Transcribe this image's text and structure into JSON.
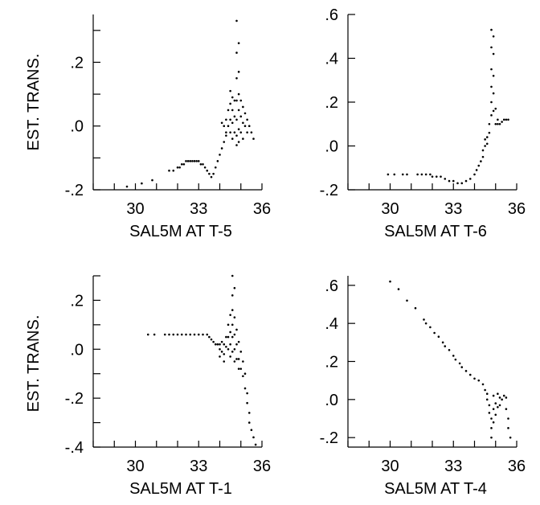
{
  "chart_data": [
    {
      "type": "scatter",
      "xlabel": "SAL5M AT T-5",
      "ylabel": "EST. TRANS.",
      "xlim": [
        28,
        36
      ],
      "ylim": [
        -0.2,
        0.35
      ],
      "xticks": [
        30,
        33,
        36
      ],
      "xtick_labels": [
        "30",
        "33",
        "36"
      ],
      "yticks": [
        -0.2,
        -0.1,
        0.0,
        0.1,
        0.2,
        0.3
      ],
      "ytick_labels": [
        "-.2",
        "",
        ".0",
        "",
        ".2",
        ""
      ],
      "points": [
        [
          29.6,
          -0.19
        ],
        [
          30.3,
          -0.18
        ],
        [
          30.8,
          -0.17
        ],
        [
          31.6,
          -0.14
        ],
        [
          31.8,
          -0.14
        ],
        [
          32.0,
          -0.13
        ],
        [
          32.1,
          -0.13
        ],
        [
          32.2,
          -0.12
        ],
        [
          32.3,
          -0.12
        ],
        [
          32.4,
          -0.11
        ],
        [
          32.5,
          -0.11
        ],
        [
          32.6,
          -0.11
        ],
        [
          32.7,
          -0.11
        ],
        [
          32.8,
          -0.11
        ],
        [
          32.9,
          -0.11
        ],
        [
          33.0,
          -0.11
        ],
        [
          33.1,
          -0.12
        ],
        [
          33.2,
          -0.12
        ],
        [
          33.3,
          -0.13
        ],
        [
          33.4,
          -0.14
        ],
        [
          33.5,
          -0.15
        ],
        [
          33.6,
          -0.16
        ],
        [
          33.7,
          -0.15
        ],
        [
          33.8,
          -0.13
        ],
        [
          33.9,
          -0.11
        ],
        [
          34.0,
          -0.09
        ],
        [
          34.1,
          -0.07
        ],
        [
          34.2,
          -0.05
        ],
        [
          34.3,
          -0.03
        ],
        [
          34.1,
          0.01
        ],
        [
          34.2,
          0.0
        ],
        [
          34.3,
          0.02
        ],
        [
          34.3,
          -0.02
        ],
        [
          34.4,
          0.05
        ],
        [
          34.4,
          0.0
        ],
        [
          34.5,
          0.11
        ],
        [
          34.5,
          0.07
        ],
        [
          34.5,
          0.02
        ],
        [
          34.5,
          -0.02
        ],
        [
          34.6,
          0.09
        ],
        [
          34.6,
          0.05
        ],
        [
          34.6,
          0.01
        ],
        [
          34.6,
          -0.04
        ],
        [
          34.7,
          0.08
        ],
        [
          34.7,
          0.03
        ],
        [
          34.7,
          -0.02
        ],
        [
          34.8,
          0.33
        ],
        [
          34.8,
          0.23
        ],
        [
          34.8,
          0.15
        ],
        [
          34.8,
          0.08
        ],
        [
          34.8,
          0.02
        ],
        [
          34.8,
          -0.03
        ],
        [
          34.8,
          -0.06
        ],
        [
          34.9,
          0.26
        ],
        [
          34.9,
          0.17
        ],
        [
          34.9,
          0.1
        ],
        [
          34.9,
          0.05
        ],
        [
          34.9,
          -0.01
        ],
        [
          34.9,
          -0.05
        ],
        [
          35.0,
          0.08
        ],
        [
          35.0,
          0.03
        ],
        [
          35.0,
          -0.02
        ],
        [
          35.1,
          0.06
        ],
        [
          35.1,
          0.01
        ],
        [
          35.1,
          -0.04
        ],
        [
          35.2,
          0.04
        ],
        [
          35.2,
          0.0
        ],
        [
          35.3,
          0.02
        ],
        [
          35.3,
          -0.02
        ],
        [
          35.4,
          0.0
        ],
        [
          35.5,
          -0.02
        ],
        [
          35.6,
          -0.04
        ]
      ]
    },
    {
      "type": "scatter",
      "xlabel": "SAL5M AT T-6",
      "ylabel": "",
      "xlim": [
        28,
        36
      ],
      "ylim": [
        -0.2,
        0.6
      ],
      "xticks": [
        30,
        33,
        36
      ],
      "xtick_labels": [
        "30",
        "33",
        "36"
      ],
      "yticks": [
        -0.2,
        0.0,
        0.2,
        0.4,
        0.6
      ],
      "ytick_labels": [
        "-.2",
        ".0",
        ".2",
        ".4",
        ".6"
      ],
      "points": [
        [
          29.9,
          -0.13
        ],
        [
          30.2,
          -0.13
        ],
        [
          30.6,
          -0.13
        ],
        [
          30.8,
          -0.13
        ],
        [
          31.3,
          -0.13
        ],
        [
          31.5,
          -0.13
        ],
        [
          31.7,
          -0.13
        ],
        [
          31.9,
          -0.13
        ],
        [
          32.0,
          -0.14
        ],
        [
          32.2,
          -0.14
        ],
        [
          32.4,
          -0.14
        ],
        [
          32.6,
          -0.15
        ],
        [
          32.8,
          -0.16
        ],
        [
          33.0,
          -0.16
        ],
        [
          33.2,
          -0.17
        ],
        [
          33.4,
          -0.17
        ],
        [
          33.6,
          -0.16
        ],
        [
          33.8,
          -0.15
        ],
        [
          34.0,
          -0.13
        ],
        [
          34.1,
          -0.11
        ],
        [
          34.2,
          -0.09
        ],
        [
          34.3,
          -0.07
        ],
        [
          34.4,
          -0.05
        ],
        [
          34.4,
          -0.02
        ],
        [
          34.5,
          0.0
        ],
        [
          34.5,
          0.03
        ],
        [
          34.6,
          0.01
        ],
        [
          34.6,
          0.04
        ],
        [
          34.7,
          0.06
        ],
        [
          34.7,
          0.1
        ],
        [
          34.8,
          0.14
        ],
        [
          34.8,
          0.2
        ],
        [
          34.8,
          0.27
        ],
        [
          34.8,
          0.35
        ],
        [
          34.8,
          0.45
        ],
        [
          34.8,
          0.53
        ],
        [
          34.9,
          0.16
        ],
        [
          34.9,
          0.24
        ],
        [
          34.9,
          0.32
        ],
        [
          34.9,
          0.42
        ],
        [
          34.9,
          0.5
        ],
        [
          35.0,
          0.1
        ],
        [
          35.0,
          0.17
        ],
        [
          35.1,
          0.12
        ],
        [
          35.1,
          0.1
        ],
        [
          35.2,
          0.1
        ],
        [
          35.3,
          0.11
        ],
        [
          35.4,
          0.12
        ],
        [
          35.5,
          0.12
        ],
        [
          35.6,
          0.12
        ]
      ]
    },
    {
      "type": "scatter",
      "xlabel": "SAL5M AT T-1",
      "ylabel": "EST. TRANS.",
      "xlim": [
        28,
        36
      ],
      "ylim": [
        -0.4,
        0.3
      ],
      "xticks": [
        30,
        33,
        36
      ],
      "xtick_labels": [
        "30",
        "33",
        "36"
      ],
      "yticks": [
        -0.4,
        -0.3,
        -0.2,
        -0.1,
        0.0,
        0.1,
        0.2,
        0.3
      ],
      "ytick_labels": [
        "-.4",
        "",
        "-.2",
        "",
        ".0",
        "",
        ".2",
        ""
      ],
      "points": [
        [
          30.6,
          0.06
        ],
        [
          30.9,
          0.06
        ],
        [
          31.4,
          0.06
        ],
        [
          31.6,
          0.06
        ],
        [
          31.8,
          0.06
        ],
        [
          32.0,
          0.06
        ],
        [
          32.2,
          0.06
        ],
        [
          32.4,
          0.06
        ],
        [
          32.6,
          0.06
        ],
        [
          32.8,
          0.06
        ],
        [
          33.0,
          0.06
        ],
        [
          33.2,
          0.06
        ],
        [
          33.4,
          0.06
        ],
        [
          33.5,
          0.05
        ],
        [
          33.6,
          0.04
        ],
        [
          33.7,
          0.03
        ],
        [
          33.8,
          0.02
        ],
        [
          33.9,
          0.02
        ],
        [
          34.0,
          0.02
        ],
        [
          34.0,
          0.0
        ],
        [
          34.0,
          -0.03
        ],
        [
          34.1,
          0.03
        ],
        [
          34.1,
          -0.01
        ],
        [
          34.2,
          0.02
        ],
        [
          34.2,
          -0.02
        ],
        [
          34.2,
          -0.05
        ],
        [
          34.3,
          0.05
        ],
        [
          34.3,
          0.01
        ],
        [
          34.4,
          0.1
        ],
        [
          34.4,
          0.05
        ],
        [
          34.4,
          0.0
        ],
        [
          34.5,
          0.14
        ],
        [
          34.5,
          0.07
        ],
        [
          34.5,
          0.02
        ],
        [
          34.5,
          -0.03
        ],
        [
          34.6,
          0.3
        ],
        [
          34.6,
          0.22
        ],
        [
          34.6,
          0.16
        ],
        [
          34.6,
          0.1
        ],
        [
          34.6,
          0.05
        ],
        [
          34.6,
          -0.01
        ],
        [
          34.7,
          0.25
        ],
        [
          34.7,
          0.13
        ],
        [
          34.7,
          0.06
        ],
        [
          34.7,
          0.0
        ],
        [
          34.7,
          -0.05
        ],
        [
          34.8,
          0.08
        ],
        [
          34.8,
          0.02
        ],
        [
          34.8,
          -0.04
        ],
        [
          34.9,
          0.03
        ],
        [
          34.9,
          -0.04
        ],
        [
          34.9,
          -0.08
        ],
        [
          35.0,
          -0.01
        ],
        [
          35.0,
          -0.08
        ],
        [
          35.1,
          -0.05
        ],
        [
          35.1,
          -0.11
        ],
        [
          35.2,
          -0.1
        ],
        [
          35.2,
          -0.16
        ],
        [
          35.3,
          -0.18
        ],
        [
          35.3,
          -0.22
        ],
        [
          35.4,
          -0.26
        ],
        [
          35.4,
          -0.3
        ],
        [
          35.5,
          -0.33
        ],
        [
          35.6,
          -0.36
        ],
        [
          35.7,
          -0.39
        ]
      ]
    },
    {
      "type": "scatter",
      "xlabel": "SAL5M AT T-4",
      "ylabel": "",
      "xlim": [
        28,
        36
      ],
      "ylim": [
        -0.25,
        0.65
      ],
      "xticks": [
        30,
        33,
        36
      ],
      "xtick_labels": [
        "30",
        "33",
        "36"
      ],
      "yticks": [
        -0.2,
        0.0,
        0.2,
        0.4,
        0.6
      ],
      "ytick_labels": [
        "-.2",
        ".0",
        ".2",
        ".4",
        ".6"
      ],
      "points": [
        [
          30.0,
          0.62
        ],
        [
          30.4,
          0.58
        ],
        [
          30.8,
          0.52
        ],
        [
          31.2,
          0.48
        ],
        [
          31.6,
          0.42
        ],
        [
          31.7,
          0.4
        ],
        [
          31.9,
          0.38
        ],
        [
          32.1,
          0.35
        ],
        [
          32.3,
          0.33
        ],
        [
          32.5,
          0.3
        ],
        [
          32.6,
          0.28
        ],
        [
          32.8,
          0.26
        ],
        [
          33.0,
          0.23
        ],
        [
          33.1,
          0.21
        ],
        [
          33.3,
          0.19
        ],
        [
          33.4,
          0.17
        ],
        [
          33.6,
          0.15
        ],
        [
          33.8,
          0.13
        ],
        [
          34.0,
          0.11
        ],
        [
          34.2,
          0.1
        ],
        [
          34.4,
          0.08
        ],
        [
          34.5,
          0.05
        ],
        [
          34.6,
          0.03
        ],
        [
          34.6,
          0.0
        ],
        [
          34.7,
          -0.03
        ],
        [
          34.7,
          -0.07
        ],
        [
          34.8,
          -0.1
        ],
        [
          34.8,
          -0.15
        ],
        [
          34.8,
          -0.2
        ],
        [
          34.9,
          0.02
        ],
        [
          34.9,
          -0.05
        ],
        [
          34.9,
          -0.12
        ],
        [
          35.0,
          -0.02
        ],
        [
          35.0,
          -0.08
        ],
        [
          35.1,
          0.03
        ],
        [
          35.1,
          -0.04
        ],
        [
          35.2,
          -0.03
        ],
        [
          35.2,
          0.01
        ],
        [
          35.3,
          0.0
        ],
        [
          35.4,
          0.02
        ],
        [
          35.5,
          -0.05
        ],
        [
          35.5,
          0.01
        ],
        [
          35.6,
          -0.1
        ],
        [
          35.6,
          -0.15
        ],
        [
          35.7,
          -0.2
        ]
      ]
    }
  ]
}
